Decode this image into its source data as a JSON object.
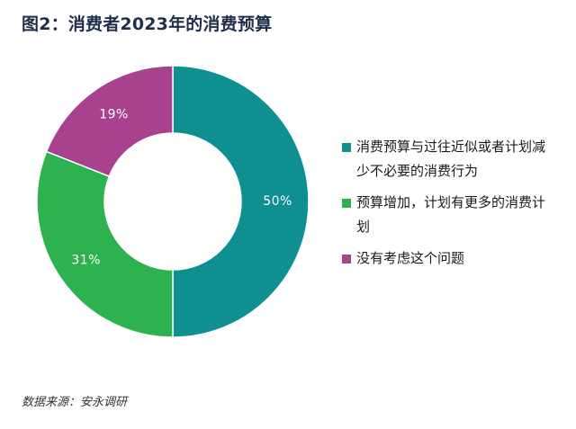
{
  "title": "图2：消费者2023年的消费预算",
  "source": "数据来源：安永调研",
  "colors": {
    "teal": "#0f9090",
    "green": "#2eb24f",
    "magenta": "#a8428f"
  },
  "chart_data": {
    "type": "pie",
    "donut": true,
    "slices": [
      {
        "name": "消费预算与过往近似或者计划减少不必要的消费行为",
        "value": 50,
        "label": "50%",
        "color": "#0f9090"
      },
      {
        "name": "预算增加，计划有更多的消费计划",
        "value": 31,
        "label": "31%",
        "color": "#2eb24f"
      },
      {
        "name": "没有考虑这个问题",
        "value": 19,
        "label": "19%",
        "color": "#a8428f"
      }
    ],
    "legend_position": "right"
  }
}
